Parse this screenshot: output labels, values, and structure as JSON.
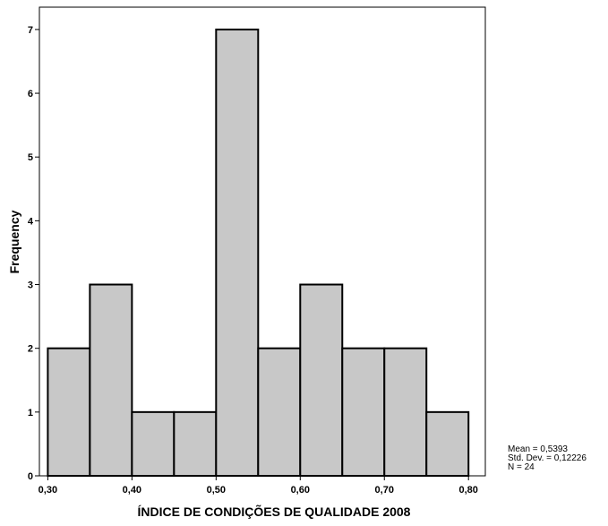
{
  "chart_data": {
    "type": "bar",
    "subtype": "histogram",
    "bins": [
      {
        "start": 0.3,
        "end": 0.35,
        "count": 2
      },
      {
        "start": 0.35,
        "end": 0.4,
        "count": 3
      },
      {
        "start": 0.4,
        "end": 0.45,
        "count": 1
      },
      {
        "start": 0.45,
        "end": 0.5,
        "count": 1
      },
      {
        "start": 0.5,
        "end": 0.55,
        "count": 7
      },
      {
        "start": 0.55,
        "end": 0.6,
        "count": 2
      },
      {
        "start": 0.6,
        "end": 0.65,
        "count": 3
      },
      {
        "start": 0.65,
        "end": 0.7,
        "count": 2
      },
      {
        "start": 0.7,
        "end": 0.75,
        "count": 2
      },
      {
        "start": 0.75,
        "end": 0.8,
        "count": 1
      }
    ],
    "xticks": [
      {
        "value": 0.3,
        "label": "0,30"
      },
      {
        "value": 0.4,
        "label": "0,40"
      },
      {
        "value": 0.5,
        "label": "0,50"
      },
      {
        "value": 0.6,
        "label": "0,60"
      },
      {
        "value": 0.7,
        "label": "0,70"
      },
      {
        "value": 0.8,
        "label": "0,80"
      }
    ],
    "yticks": [
      0,
      1,
      2,
      3,
      4,
      5,
      6,
      7
    ],
    "xlabel": "ÍNDICE DE CONDIÇÕES DE QUALIDADE 2008",
    "ylabel": "Frequency",
    "xlim": [
      0.29,
      0.82
    ],
    "ylim": [
      0,
      7.35
    ],
    "grid": false,
    "bar_color": "#c8c8c8",
    "stats": {
      "mean": "Mean = 0,5393",
      "std": "Std. Dev. = 0,12226",
      "n": "N = 24"
    }
  }
}
